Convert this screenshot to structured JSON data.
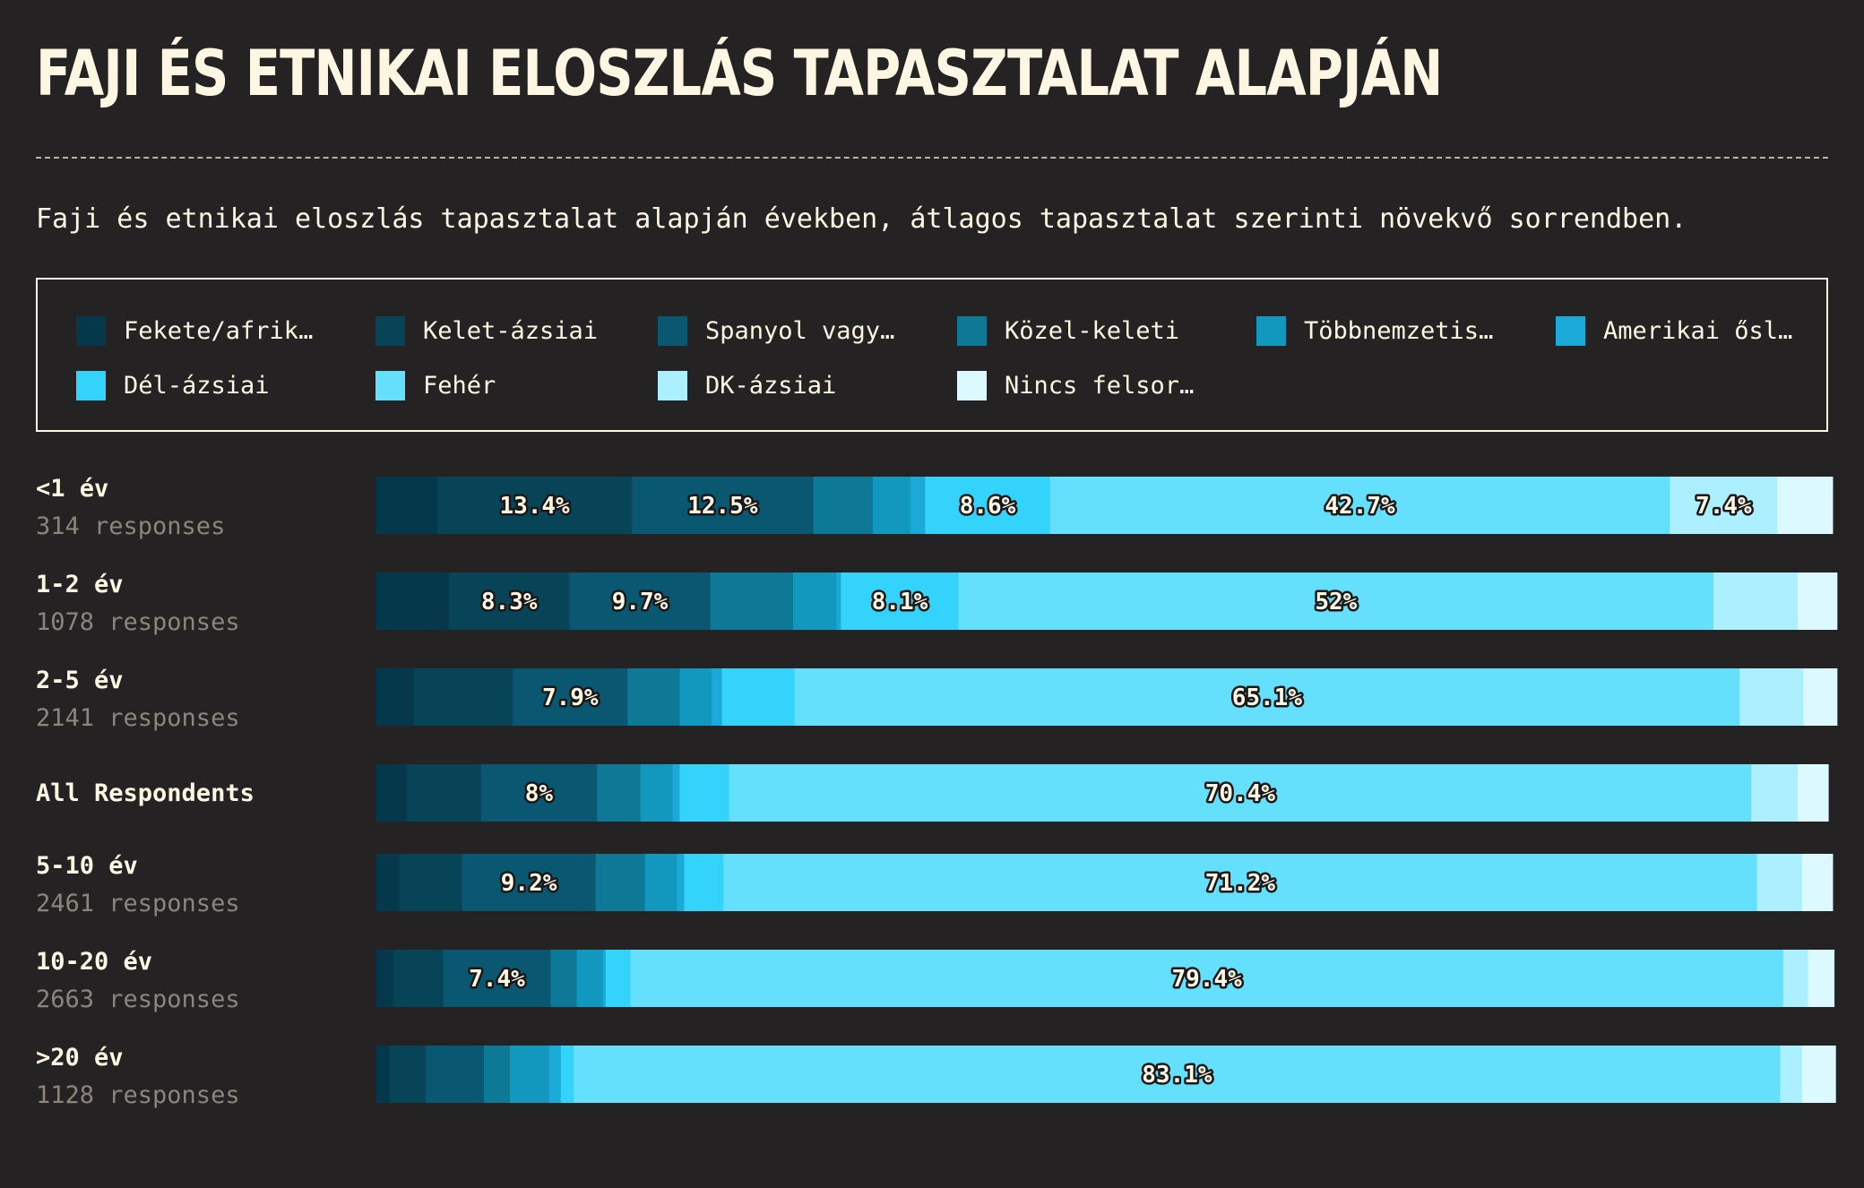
{
  "title": "FAJI ÉS ETNIKAI ELOSZLÁS TAPASZTALAT ALAPJÁN",
  "subtitle": "Faji és etnikai eloszlás tapasztalat alapján években, átlagos tapasztalat szerinti növekvő sorrendben.",
  "legend": [
    {
      "label": "Fekete/afrik…",
      "color": "#06384b"
    },
    {
      "label": "Kelet-ázsiai",
      "color": "#074458"
    },
    {
      "label": "Spanyol vagy…",
      "color": "#095770"
    },
    {
      "label": "Közel-keleti",
      "color": "#0e7996"
    },
    {
      "label": "Többnemzetis…",
      "color": "#1297bf"
    },
    {
      "label": "Amerikai ősl…",
      "color": "#1baad8"
    },
    {
      "label": "Dél-ázsiai",
      "color": "#33d3fb"
    },
    {
      "label": "Fehér",
      "color": "#64e0fd"
    },
    {
      "label": "DK-ázsiai",
      "color": "#acefff"
    },
    {
      "label": "Nincs felsor…",
      "color": "#dbf9ff"
    }
  ],
  "chart_data": {
    "type": "bar",
    "orientation": "horizontal",
    "stacked": true,
    "normalized": true,
    "title": "FAJI ÉS ETNIKAI ELOSZLÁS TAPASZTALAT ALAPJÁN",
    "subtitle": "Faji és etnikai eloszlás tapasztalat alapján években, átlagos tapasztalat szerinti növekvő sorrendben.",
    "legend_position": "top",
    "categories": [
      "<1 év",
      "1-2 év",
      "2-5 év",
      "All Respondents",
      "5-10 év",
      "10-20 év",
      ">20 év"
    ],
    "responses": [
      "314 responses",
      "1078 responses",
      "2141 responses",
      "",
      "2461 responses",
      "2663 responses",
      "1128 responses"
    ],
    "series": [
      {
        "name": "Fekete/afrik…",
        "values": [
          4.2,
          5.0,
          2.6,
          2.1,
          1.6,
          1.2,
          0.9
        ]
      },
      {
        "name": "Kelet-ázsiai",
        "values": [
          13.4,
          8.3,
          6.8,
          5.1,
          4.3,
          3.4,
          2.5
        ]
      },
      {
        "name": "Spanyol vagy…",
        "values": [
          12.5,
          9.7,
          7.9,
          8.0,
          9.2,
          7.4,
          4.0
        ]
      },
      {
        "name": "Közel-keleti",
        "values": [
          4.1,
          5.7,
          3.6,
          3.0,
          3.4,
          1.8,
          1.8
        ]
      },
      {
        "name": "Többnemzetis…",
        "values": [
          2.6,
          3.0,
          2.2,
          2.2,
          2.2,
          1.8,
          2.7
        ]
      },
      {
        "name": "Amerikai ősl…",
        "values": [
          1.0,
          0.3,
          0.7,
          0.5,
          0.5,
          0.2,
          0.8
        ]
      },
      {
        "name": "Dél-ázsiai",
        "values": [
          8.6,
          8.1,
          5.0,
          3.4,
          2.7,
          1.7,
          0.9
        ]
      },
      {
        "name": "Fehér",
        "values": [
          42.7,
          52.0,
          65.1,
          70.4,
          71.2,
          79.4,
          83.1
        ]
      },
      {
        "name": "DK-ázsiai",
        "values": [
          7.4,
          5.8,
          4.4,
          3.2,
          3.1,
          1.7,
          1.5
        ]
      },
      {
        "name": "Nincs felsor…",
        "values": [
          3.8,
          2.7,
          2.3,
          2.1,
          2.1,
          1.8,
          2.3
        ]
      }
    ],
    "data_labels": [
      [
        null,
        "13.4%",
        "12.5%",
        null,
        null,
        null,
        "8.6%",
        "42.7%",
        "7.4%",
        null
      ],
      [
        null,
        "8.3%",
        "9.7%",
        null,
        null,
        null,
        "8.1%",
        "52%",
        null,
        null
      ],
      [
        null,
        null,
        "7.9%",
        null,
        null,
        null,
        null,
        "65.1%",
        null,
        null
      ],
      [
        null,
        null,
        "8%",
        null,
        null,
        null,
        null,
        "70.4%",
        null,
        null
      ],
      [
        null,
        null,
        "9.2%",
        null,
        null,
        null,
        null,
        "71.2%",
        null,
        null
      ],
      [
        null,
        null,
        "7.4%",
        null,
        null,
        null,
        null,
        "79.4%",
        null,
        null
      ],
      [
        null,
        null,
        null,
        null,
        null,
        null,
        null,
        "83.1%",
        null,
        null
      ]
    ],
    "xlim": [
      0,
      100
    ],
    "grid": false
  }
}
